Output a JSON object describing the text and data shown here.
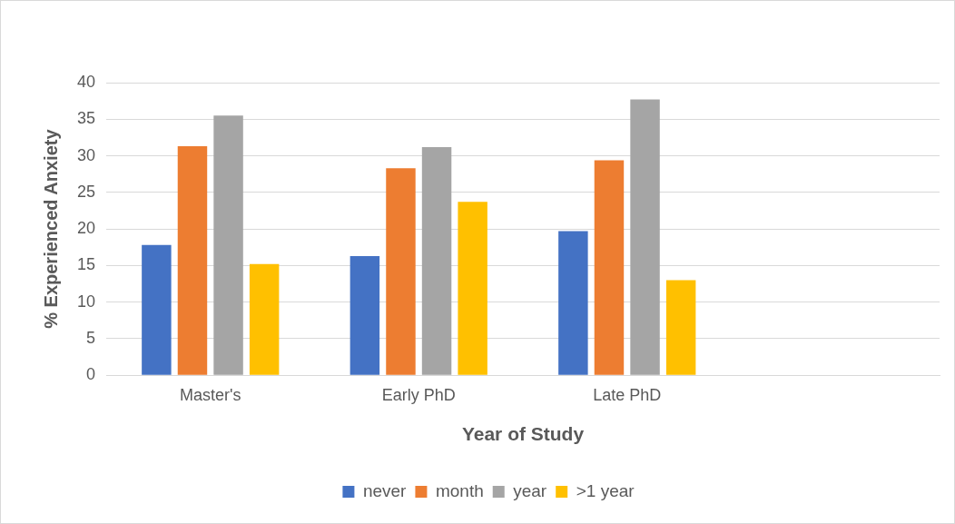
{
  "chart_data": {
    "type": "bar",
    "xlabel": "Year of Study",
    "ylabel": "% Experienced Anxiety",
    "categories": [
      "Master's",
      "Early PhD",
      "Late PhD",
      null
    ],
    "series": [
      {
        "name": "never",
        "color": "#4472c4",
        "values": [
          17.8,
          16.3,
          19.7,
          null
        ]
      },
      {
        "name": "month",
        "color": "#ed7d31",
        "values": [
          31.3,
          28.3,
          29.4,
          null
        ]
      },
      {
        "name": "year",
        "color": "#a5a5a5",
        "values": [
          35.5,
          31.2,
          37.7,
          null
        ]
      },
      {
        "name": ">1 year",
        "color": "#ffc000",
        "values": [
          15.2,
          23.7,
          13.0,
          null
        ]
      }
    ],
    "ylim": [
      0,
      40
    ],
    "yticks": [
      0,
      5,
      10,
      15,
      20,
      25,
      30,
      35,
      40
    ],
    "grid": "y",
    "legend": "bottom"
  }
}
